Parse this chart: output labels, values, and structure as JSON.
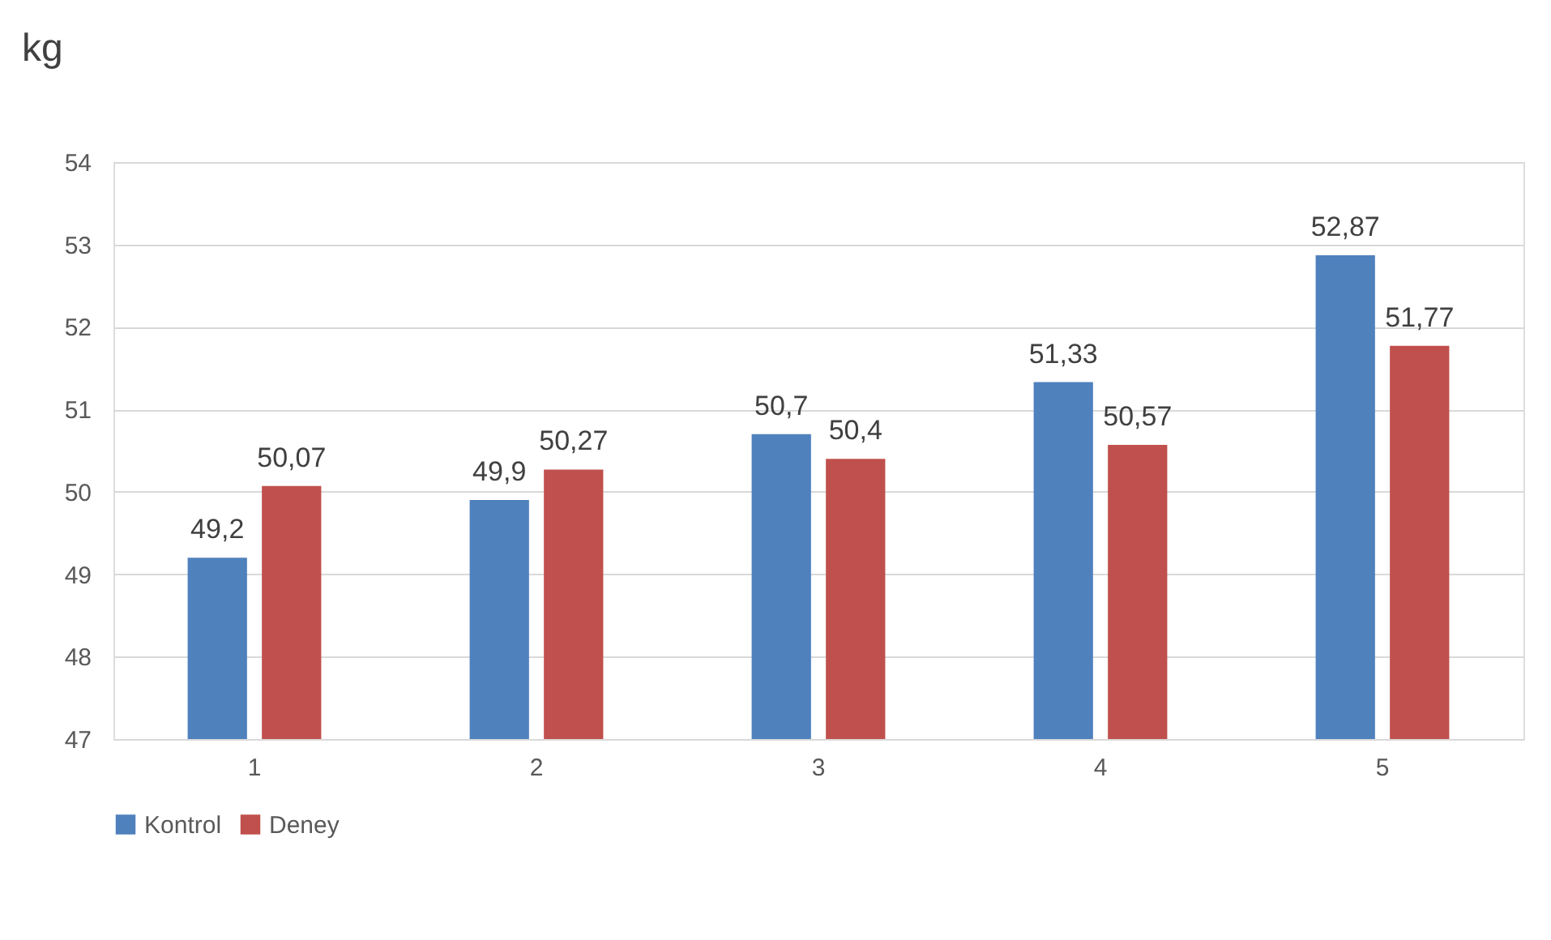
{
  "chart_data": {
    "type": "bar",
    "ylabel": "kg",
    "categories": [
      "1",
      "2",
      "3",
      "4",
      "5"
    ],
    "series": [
      {
        "name": "Kontrol",
        "color": "#4f81bd",
        "values": [
          49.2,
          49.9,
          50.7,
          51.33,
          52.87
        ],
        "value_labels": [
          "49,2",
          "49,9",
          "50,7",
          "51,33",
          "52,87"
        ]
      },
      {
        "name": "Deney",
        "color": "#c0504d",
        "values": [
          50.07,
          50.27,
          50.4,
          50.57,
          51.77
        ],
        "value_labels": [
          "50,07",
          "50,27",
          "50,4",
          "50,57",
          "51,77"
        ]
      }
    ],
    "ylim": [
      47,
      54
    ],
    "yticks": [
      47,
      48,
      49,
      50,
      51,
      52,
      53,
      54
    ],
    "grid": "y",
    "legend": "bottom"
  }
}
